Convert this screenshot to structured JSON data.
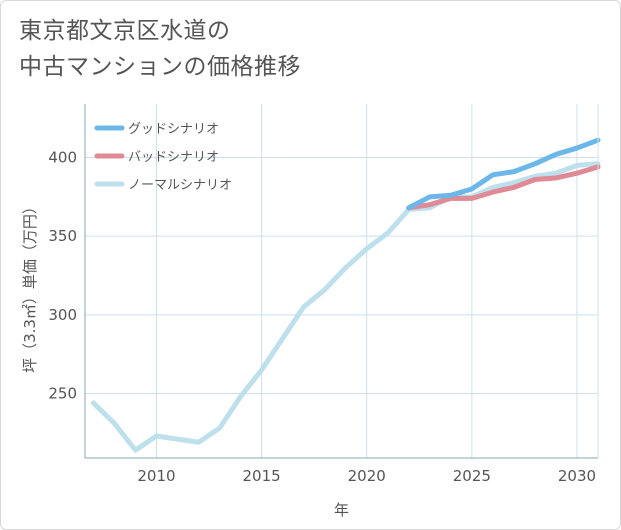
{
  "title_lines": [
    "東京都文京区水道の",
    "中古マンションの価格推移"
  ],
  "chart_data": {
    "type": "line",
    "title": "東京都文京区水道の中古マンションの価格推移",
    "xlabel": "年",
    "ylabel": "坪（3.3㎡）単価（万円）",
    "xlim": [
      2006.6,
      2031
    ],
    "ylim": [
      209,
      434
    ],
    "x_ticks": [
      2010,
      2015,
      2020,
      2025,
      2030
    ],
    "y_ticks": [
      250,
      300,
      350,
      400
    ],
    "grid": true,
    "legend_position": "top-left",
    "series": [
      {
        "name": "グッドシナリオ",
        "color": "#6cb7ea",
        "x": [
          2022,
          2023,
          2024,
          2025,
          2026,
          2027,
          2028,
          2029,
          2030,
          2031
        ],
        "y": [
          368,
          375,
          376,
          380,
          389,
          391,
          396,
          402,
          406,
          411
        ]
      },
      {
        "name": "バッドシナリオ",
        "color": "#df8a94",
        "x": [
          2022,
          2023,
          2024,
          2025,
          2026,
          2027,
          2028,
          2029,
          2030,
          2031
        ],
        "y": [
          368,
          370,
          374,
          374,
          378,
          381,
          386,
          387,
          390,
          394
        ]
      },
      {
        "name": "ノーマルシナリオ",
        "color": "#bde0ec",
        "x": [
          2007,
          2008,
          2009,
          2010,
          2011,
          2012,
          2013,
          2014,
          2015,
          2016,
          2017,
          2018,
          2019,
          2020,
          2021,
          2022,
          2023,
          2024,
          2025,
          2026,
          2027,
          2028,
          2029,
          2030,
          2031
        ],
        "y": [
          244,
          231,
          214,
          223,
          221,
          219,
          228,
          248,
          265,
          285,
          305,
          316,
          330,
          342,
          352,
          367,
          368,
          375,
          375,
          381,
          384,
          388,
          390,
          395,
          396
        ]
      }
    ]
  }
}
